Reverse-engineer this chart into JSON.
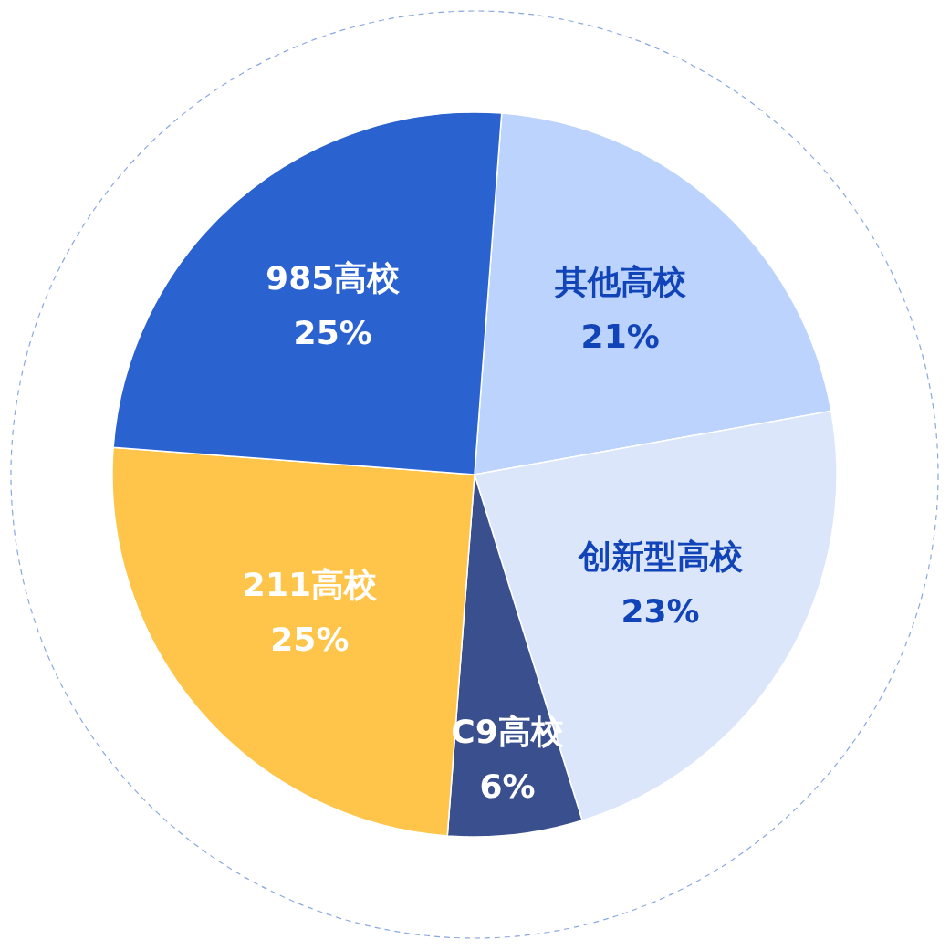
{
  "chart_data": {
    "type": "pie",
    "categories": [
      "其他高校",
      "创新型高校",
      "C9高校",
      "211高校",
      "985高校"
    ],
    "values": [
      21,
      23,
      6,
      25,
      25
    ],
    "value_labels": [
      "21%",
      "23%",
      "6%",
      "25%",
      "25%"
    ],
    "colors": [
      "#bcd3fd",
      "#dbe6fa",
      "#3a4f8e",
      "#fec54a",
      "#2a62d0"
    ]
  }
}
